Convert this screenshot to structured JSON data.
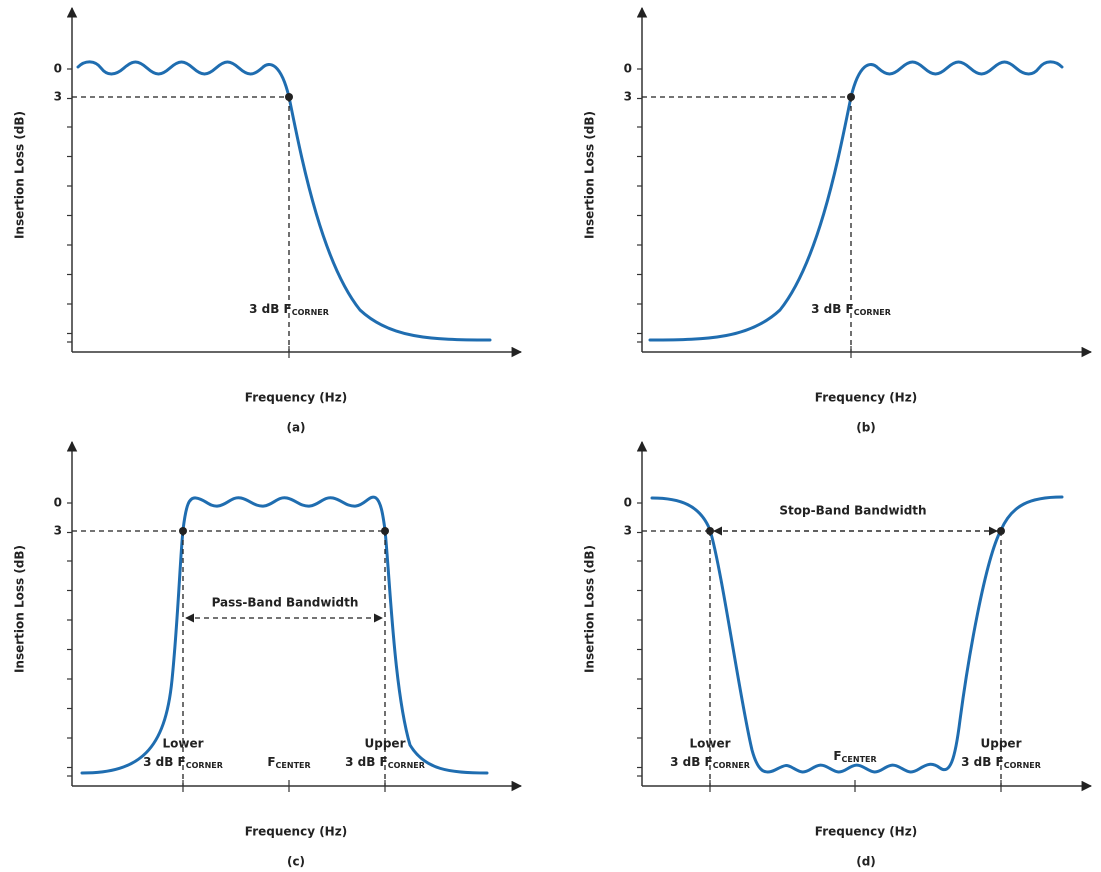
{
  "panels": [
    {
      "caption": "(a)",
      "x_label": "Frequency (Hz)",
      "y_label": "Insertion Loss (dB)",
      "y_ticks": [
        "0",
        "3"
      ],
      "corner": {
        "text": "3 dB F",
        "sub": "CORNER"
      }
    },
    {
      "caption": "(b)",
      "x_label": "Frequency (Hz)",
      "y_label": "Insertion Loss (dB)",
      "y_ticks": [
        "0",
        "3"
      ],
      "corner": {
        "text": "3 dB F",
        "sub": "CORNER"
      }
    },
    {
      "caption": "(c)",
      "x_label": "Frequency (Hz)",
      "y_label": "Insertion Loss (dB)",
      "y_ticks": [
        "0",
        "3"
      ],
      "bandwidth": "Pass-Band Bandwidth",
      "lower": {
        "word": "Lower",
        "text": "3 dB F",
        "sub": "CORNER"
      },
      "center": {
        "text": "F",
        "sub": "CENTER"
      },
      "upper": {
        "word": "Upper",
        "text": "3 dB F",
        "sub": "CORNER"
      }
    },
    {
      "caption": "(d)",
      "x_label": "Frequency (Hz)",
      "y_label": "Insertion Loss (dB)",
      "y_ticks": [
        "0",
        "3"
      ],
      "bandwidth": "Stop-Band Bandwidth",
      "lower": {
        "word": "Lower",
        "text": "3 dB F",
        "sub": "CORNER"
      },
      "center": {
        "text": "F",
        "sub": "CENTER"
      },
      "upper": {
        "word": "Upper",
        "text": "3 dB F",
        "sub": "CORNER"
      }
    }
  ]
}
